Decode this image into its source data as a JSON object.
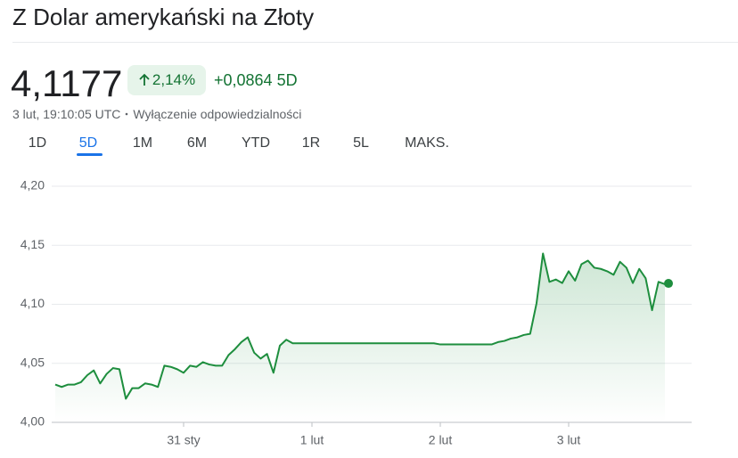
{
  "header": {
    "title": "Z Dolar amerykański na Złoty",
    "price": "4,1177",
    "change_percent": "2,14%",
    "change": "+0,0864",
    "period": "5D",
    "timestamp": "3 lut, 19:10:05 UTC",
    "disclaimer": "Wyłączenie odpowiedzialności"
  },
  "tabs": [
    "1D",
    "5D",
    "1M",
    "6M",
    "YTD",
    "1R",
    "5L",
    "MAKS."
  ],
  "chart_data": {
    "type": "line",
    "color": "#1e8e3e",
    "categories": [
      null,
      null,
      null,
      null,
      null,
      null,
      null,
      null,
      null,
      null,
      null,
      null,
      null,
      null,
      null,
      null,
      null,
      null,
      null,
      null,
      "31 sty",
      null,
      null,
      null,
      null,
      null,
      null,
      null,
      null,
      null,
      null,
      null,
      null,
      null,
      null,
      null,
      null,
      null,
      null,
      null,
      "1 lut",
      null,
      null,
      null,
      null,
      null,
      null,
      null,
      null,
      null,
      null,
      null,
      null,
      null,
      null,
      null,
      null,
      null,
      null,
      null,
      "2 lut",
      null,
      null,
      null,
      null,
      null,
      null,
      null,
      null,
      null,
      null,
      null,
      null,
      null,
      null,
      null,
      null,
      null,
      null,
      null,
      "3 lut",
      null,
      null,
      null,
      null,
      null,
      null,
      null,
      null,
      null,
      null,
      null,
      null,
      null,
      null,
      null
    ],
    "values": [
      4.032,
      4.03,
      4.032,
      4.032,
      4.034,
      4.04,
      4.044,
      4.033,
      4.041,
      4.046,
      4.045,
      4.02,
      4.029,
      4.029,
      4.033,
      4.032,
      4.03,
      4.048,
      4.047,
      4.045,
      4.042,
      4.048,
      4.047,
      4.051,
      4.049,
      4.048,
      4.048,
      4.057,
      4.062,
      4.068,
      4.072,
      4.059,
      4.054,
      4.058,
      4.042,
      4.065,
      4.07,
      4.067,
      4.067,
      4.067,
      4.067,
      4.067,
      4.067,
      4.067,
      4.067,
      4.067,
      4.067,
      4.067,
      4.067,
      4.067,
      4.067,
      4.067,
      4.067,
      4.067,
      4.067,
      4.067,
      4.067,
      4.067,
      4.067,
      4.067,
      4.066,
      4.066,
      4.066,
      4.066,
      4.066,
      4.066,
      4.066,
      4.066,
      4.066,
      4.068,
      4.069,
      4.071,
      4.072,
      4.074,
      4.075,
      4.101,
      4.143,
      4.119,
      4.121,
      4.118,
      4.128,
      4.12,
      4.134,
      4.137,
      4.131,
      4.13,
      4.128,
      4.125,
      4.136,
      4.131,
      4.118,
      4.13,
      4.122,
      4.095,
      4.119,
      4.117
    ],
    "last": 4.1177,
    "ylim": [
      4.0,
      4.2
    ],
    "yticks": [
      {
        "value": 4.0,
        "label": "4,00"
      },
      {
        "value": 4.05,
        "label": "4,05"
      },
      {
        "value": 4.1,
        "label": "4,10"
      },
      {
        "value": 4.15,
        "label": "4,15"
      },
      {
        "value": 4.2,
        "label": "4,20"
      }
    ],
    "grid": true
  }
}
